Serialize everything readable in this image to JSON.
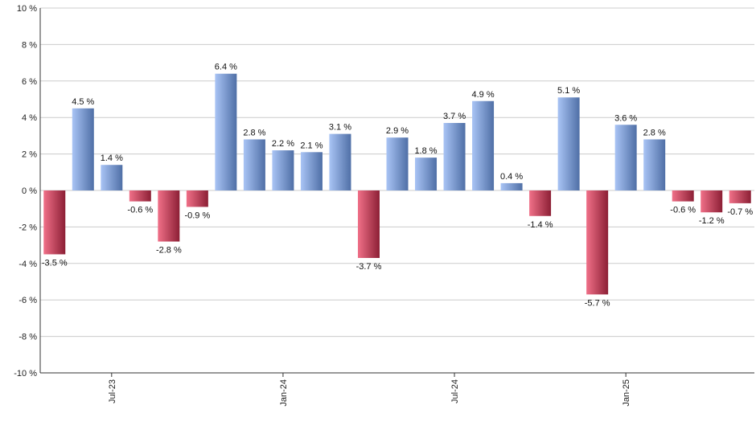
{
  "chart_data": {
    "type": "bar",
    "title": "",
    "xlabel": "",
    "ylabel": "",
    "ylim": [
      -10,
      10
    ],
    "y_ticks": [
      -10,
      -8,
      -6,
      -4,
      -2,
      0,
      2,
      4,
      6,
      8,
      10
    ],
    "y_tick_labels": [
      "-10 %",
      "-8 %",
      "-6 %",
      "-4 %",
      "-2 %",
      "0 %",
      "2 %",
      "4 %",
      "6 %",
      "8 %",
      "10 %"
    ],
    "grid": true,
    "values": [
      -3.5,
      4.5,
      1.4,
      -0.6,
      -2.8,
      -0.9,
      6.4,
      2.8,
      2.2,
      2.1,
      3.1,
      -3.7,
      2.9,
      1.8,
      3.7,
      4.9,
      0.4,
      -1.4,
      5.1,
      -5.7,
      3.6,
      2.8,
      -0.6,
      -1.2,
      -0.7
    ],
    "data_labels": [
      "-3.5 %",
      "4.5 %",
      "1.4 %",
      "-0.6 %",
      "-2.8 %",
      "-0.9 %",
      "6.4 %",
      "2.8 %",
      "2.2 %",
      "2.1 %",
      "3.1 %",
      "-3.7 %",
      "2.9 %",
      "1.8 %",
      "3.7 %",
      "4.9 %",
      "0.4 %",
      "-1.4 %",
      "5.1 %",
      "-5.7 %",
      "3.6 %",
      "2.8 %",
      "-0.6 %",
      "-1.2 %",
      "-0.7 %"
    ],
    "x_tick_labels": [
      {
        "label": "Jul-23",
        "index": 2
      },
      {
        "label": "Jan-24",
        "index": 8
      },
      {
        "label": "Jul-24",
        "index": 14
      },
      {
        "label": "Jan-25",
        "index": 20
      }
    ],
    "colors": {
      "positive_light": "#a9c4f5",
      "positive_dark": "#4f6fa6",
      "negative_light": "#f07088",
      "negative_dark": "#8c1f35",
      "grid": "#cccccc",
      "axis": "#333333"
    }
  }
}
